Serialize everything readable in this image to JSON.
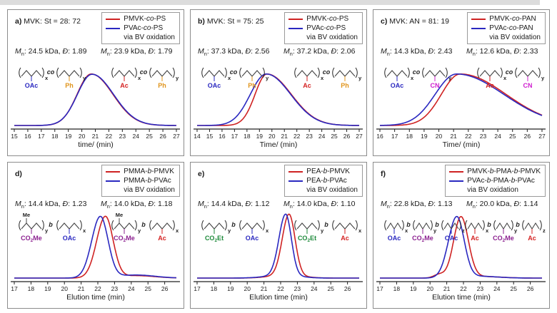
{
  "figure": {
    "top_strip_color": "#dcdcdc",
    "panel_border_color": "#8c8c8c",
    "series_colors": {
      "red": "#cf2222",
      "blue": "#2a28c0"
    },
    "stat_labels": {
      "mn_symbol": "M",
      "mn_subscript": "n",
      "dispersity_symbol": "Đ"
    }
  },
  "chart_data": [
    {
      "id": "a",
      "type": "line",
      "panel_label": "a)",
      "title": "MVK: St = 28: 72",
      "legend": [
        {
          "text": "PMVK-co-PS",
          "color": "red"
        },
        {
          "text": "PVAc-co-PS",
          "color": "blue",
          "note": "via BV oxidation"
        }
      ],
      "stats": [
        {
          "mn": "24.5 kDa",
          "dispersity": "1.89"
        },
        {
          "mn": "23.9 kDa",
          "dispersity": "1.79"
        }
      ],
      "xlabel": "time/ (min)",
      "xlim": [
        15,
        27
      ],
      "xticks": [
        15,
        16,
        17,
        18,
        19,
        20,
        21,
        22,
        23,
        24,
        25,
        26,
        27
      ],
      "y_max_frac": 0.76,
      "structures": [
        {
          "linker": "co",
          "units": [
            {
              "sub": "OAc",
              "color": "#2a28c0",
              "index": "x"
            },
            {
              "sub": "Ph",
              "color": "#e0941c",
              "index": "y"
            }
          ]
        },
        {
          "linker": "co",
          "units": [
            {
              "sub": "Ac",
              "color": "#d42020",
              "index": "x"
            },
            {
              "sub": "Ph",
              "color": "#e0941c",
              "index": "y"
            }
          ]
        }
      ],
      "series": [
        {
          "name": "PMVK-co-PS",
          "color": "red",
          "peak_components": [
            {
              "mu": 20.7,
              "sigma_left": 1.05,
              "sigma_right": 1.6,
              "amp": 1.0
            }
          ]
        },
        {
          "name": "PVAc-co-PS via BV oxidation",
          "color": "blue",
          "peak_components": [
            {
              "mu": 20.75,
              "sigma_left": 1.08,
              "sigma_right": 1.6,
              "amp": 0.995
            }
          ]
        }
      ]
    },
    {
      "id": "b",
      "type": "line",
      "panel_label": "b)",
      "title": "MVK: St = 75: 25",
      "legend": [
        {
          "text": "PMVK-co-PS",
          "color": "red"
        },
        {
          "text": "PVAc-co-PS",
          "color": "blue",
          "note": "via BV oxidation"
        }
      ],
      "stats": [
        {
          "mn": "37.3 kDa",
          "dispersity": "2.56"
        },
        {
          "mn": "37.2 kDa",
          "dispersity": "2.06"
        }
      ],
      "xlabel": "Time/ (min)",
      "xlim": [
        14,
        27
      ],
      "xticks": [
        14,
        15,
        16,
        17,
        18,
        19,
        20,
        21,
        22,
        23,
        24,
        25,
        26,
        27
      ],
      "y_max_frac": 0.76,
      "structures": [
        {
          "linker": "co",
          "units": [
            {
              "sub": "OAc",
              "color": "#2a28c0",
              "index": "x"
            },
            {
              "sub": "Ph",
              "color": "#e0941c",
              "index": "y"
            }
          ]
        },
        {
          "linker": "co",
          "units": [
            {
              "sub": "Ac",
              "color": "#d42020",
              "index": "x"
            },
            {
              "sub": "Ph",
              "color": "#e0941c",
              "index": "y"
            }
          ]
        }
      ],
      "series": [
        {
          "name": "PMVK-co-PS",
          "color": "red",
          "peak_components": [
            {
              "mu": 19.6,
              "sigma_left": 0.95,
              "sigma_right": 1.95,
              "amp": 1.0
            }
          ]
        },
        {
          "name": "PVAc-co-PS via BV oxidation",
          "color": "blue",
          "peak_components": [
            {
              "mu": 19.55,
              "sigma_left": 1.28,
              "sigma_right": 1.95,
              "amp": 1.0
            }
          ]
        }
      ]
    },
    {
      "id": "c",
      "type": "line",
      "panel_label": "c)",
      "title": "MVK: AN = 81: 19",
      "legend": [
        {
          "text": "PMVK-co-PAN",
          "color": "red"
        },
        {
          "text": "PVAc-co-PAN",
          "color": "blue",
          "note": "via BV oxidation"
        }
      ],
      "stats": [
        {
          "mn": "14.3 kDa",
          "dispersity": "2.43"
        },
        {
          "mn": "12.6 kDa",
          "dispersity": "2.33"
        }
      ],
      "xlabel": "Time/ (min)",
      "xlim": [
        16,
        27
      ],
      "xticks": [
        16,
        17,
        18,
        19,
        20,
        21,
        22,
        23,
        24,
        25,
        26,
        27
      ],
      "y_max_frac": 0.76,
      "structures": [
        {
          "linker": "co",
          "units": [
            {
              "sub": "OAc",
              "color": "#2a28c0",
              "index": "x"
            },
            {
              "sub": "CN",
              "color": "#cf1fcf",
              "index": "y"
            }
          ]
        },
        {
          "linker": "co",
          "units": [
            {
              "sub": "Ac",
              "color": "#d42020",
              "index": "x"
            },
            {
              "sub": "CN",
              "color": "#cf1fcf",
              "index": "y"
            }
          ]
        }
      ],
      "series": [
        {
          "name": "PMVK-co-PAN",
          "color": "red",
          "peak_components": [
            {
              "mu": 21.45,
              "sigma_left": 1.28,
              "sigma_right": 3.1,
              "amp": 1.0
            }
          ]
        },
        {
          "name": "PVAc-co-PAN via BV oxidation",
          "color": "blue",
          "peak_components": [
            {
              "mu": 21.2,
              "sigma_left": 1.45,
              "sigma_right": 3.2,
              "amp": 1.0
            }
          ]
        }
      ]
    },
    {
      "id": "d",
      "type": "line",
      "panel_label": "d)",
      "title": "",
      "legend": [
        {
          "text": "PMMA-b-PMVK",
          "color": "red"
        },
        {
          "text": "PMMA-b-PVAc",
          "color": "blue",
          "note": "via BV oxidation"
        }
      ],
      "stats": [
        {
          "mn": "14.4 kDa",
          "dispersity": "1.23"
        },
        {
          "mn": "14.0 kDa",
          "dispersity": "1.18"
        }
      ],
      "xlabel": "Elution time (min)",
      "xlim": [
        17,
        26.7
      ],
      "xticks": [
        17,
        18,
        19,
        20,
        21,
        22,
        23,
        24,
        25,
        26
      ],
      "y_max_frac": 0.9,
      "structures": [
        {
          "linker": "b",
          "units": [
            {
              "sub": "CO2Me",
              "color": "#8b1f8f",
              "index": "y",
              "me_top": true
            },
            {
              "sub": "OAc",
              "color": "#2a28c0",
              "index": "x"
            }
          ]
        },
        {
          "linker": "b",
          "units": [
            {
              "sub": "CO2Me",
              "color": "#8b1f8f",
              "index": "y",
              "me_top": true
            },
            {
              "sub": "Ac",
              "color": "#d42020",
              "index": "x"
            }
          ]
        }
      ],
      "series": [
        {
          "name": "PMMA-b-PMVK",
          "color": "red",
          "peak_components": [
            {
              "mu": 22.45,
              "sigma_left": 0.52,
              "sigma_right": 0.46,
              "amp": 1.0
            },
            {
              "mu": 24.3,
              "sigma_left": 1.3,
              "sigma_right": 1.1,
              "amp": 0.04
            }
          ]
        },
        {
          "name": "PMMA-b-PVAc via BV oxidation",
          "color": "blue",
          "peak_components": [
            {
              "mu": 22.15,
              "sigma_left": 0.52,
              "sigma_right": 0.46,
              "amp": 1.0
            },
            {
              "mu": 24.3,
              "sigma_left": 1.3,
              "sigma_right": 1.1,
              "amp": 0.05
            }
          ]
        }
      ]
    },
    {
      "id": "e",
      "type": "line",
      "panel_label": "e)",
      "title": "",
      "legend": [
        {
          "text": "PEA-b-PMVK",
          "color": "red"
        },
        {
          "text": "PEA-b-PVAc",
          "color": "blue",
          "note": "via BV oxidation"
        }
      ],
      "stats": [
        {
          "mn": "14.4 kDa",
          "dispersity": "1.12"
        },
        {
          "mn": "14.0 kDa",
          "dispersity": "1.10"
        }
      ],
      "xlabel": "Elution time (min)",
      "xlim": [
        17,
        26.7
      ],
      "xticks": [
        17,
        18,
        19,
        20,
        21,
        22,
        23,
        24,
        25,
        26
      ],
      "y_max_frac": 0.9,
      "structures": [
        {
          "linker": "b",
          "units": [
            {
              "sub": "CO2Et",
              "color": "#1d8a3a",
              "index": "y"
            },
            {
              "sub": "OAc",
              "color": "#2a28c0",
              "index": "x"
            }
          ]
        },
        {
          "linker": "b",
          "units": [
            {
              "sub": "CO2Et",
              "color": "#1d8a3a",
              "index": "y"
            },
            {
              "sub": "Ac",
              "color": "#d42020",
              "index": "x"
            }
          ]
        }
      ],
      "series": [
        {
          "name": "PEA-b-PMVK",
          "color": "red",
          "peak_components": [
            {
              "mu": 22.5,
              "sigma_left": 0.4,
              "sigma_right": 0.36,
              "amp": 1.0
            },
            {
              "mu": 22.4,
              "sigma_left": 1.0,
              "sigma_right": 0.9,
              "amp": 0.05
            }
          ]
        },
        {
          "name": "PEA-b-PVAc via BV oxidation",
          "color": "blue",
          "peak_components": [
            {
              "mu": 22.3,
              "sigma_left": 0.4,
              "sigma_right": 0.34,
              "amp": 1.0
            },
            {
              "mu": 22.2,
              "sigma_left": 1.0,
              "sigma_right": 0.9,
              "amp": 0.05
            }
          ]
        }
      ]
    },
    {
      "id": "f",
      "type": "line",
      "panel_label": "f)",
      "title": "",
      "legend": [
        {
          "text": "PMVK-b-PMA-b-PMVK",
          "color": "red"
        },
        {
          "text": "PVAc-b-PMA-b-PVAc",
          "color": "blue",
          "note": "via BV oxidation"
        }
      ],
      "stats": [
        {
          "mn": "22.8 kDa",
          "dispersity": "1.13"
        },
        {
          "mn": "20.0 kDa",
          "dispersity": "1.14"
        }
      ],
      "xlabel": "Elution time (min)",
      "xlim": [
        17,
        26.7
      ],
      "xticks": [
        17,
        18,
        19,
        20,
        21,
        22,
        23,
        24,
        25,
        26
      ],
      "y_max_frac": 0.9,
      "structures": [
        {
          "linker": "b",
          "units": [
            {
              "sub": "OAc",
              "color": "#2a28c0",
              "index": "x"
            },
            {
              "sub": "CO2Me",
              "color": "#8b1f8f",
              "index": "y"
            },
            {
              "sub": "OAc",
              "color": "#2a28c0",
              "index": "z"
            }
          ]
        },
        {
          "linker": "b",
          "units": [
            {
              "sub": "Ac",
              "color": "#d42020",
              "index": "x"
            },
            {
              "sub": "CO2Me",
              "color": "#8b1f8f",
              "index": "y"
            },
            {
              "sub": "Ac",
              "color": "#d42020",
              "index": "z"
            }
          ]
        }
      ],
      "series": [
        {
          "name": "PMVK-b-PMA-b-PMVK",
          "color": "red",
          "peak_components": [
            {
              "mu": 21.85,
              "sigma_left": 0.44,
              "sigma_right": 0.44,
              "amp": 1.0
            },
            {
              "mu": 20.55,
              "sigma_left": 0.32,
              "sigma_right": 0.32,
              "amp": 0.06
            },
            {
              "mu": 23.1,
              "sigma_left": 0.9,
              "sigma_right": 1.1,
              "amp": 0.025
            }
          ]
        },
        {
          "name": "PVAc-b-PMA-b-PVAc via BV oxidation",
          "color": "blue",
          "peak_components": [
            {
              "mu": 21.6,
              "sigma_left": 0.5,
              "sigma_right": 0.44,
              "amp": 1.0
            },
            {
              "mu": 22.9,
              "sigma_left": 0.9,
              "sigma_right": 1.1,
              "amp": 0.03
            }
          ]
        }
      ]
    }
  ]
}
